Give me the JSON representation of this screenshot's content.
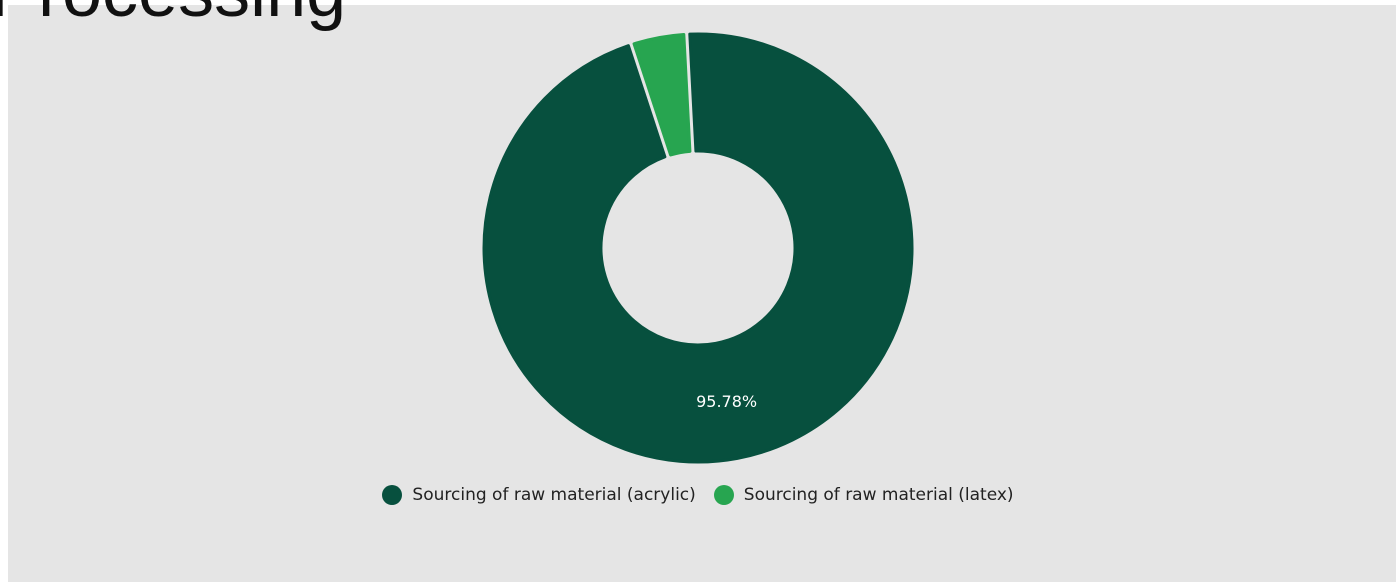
{
  "page": {
    "heading": "Processing"
  },
  "colors": {
    "background": "#e5e5e5",
    "acrylic": "#07503e",
    "latex": "#27a550",
    "data_label": "#ffffff"
  },
  "chart_data": {
    "type": "pie",
    "variant": "donut",
    "title": "",
    "series": [
      {
        "name": "Sourcing of raw material (acrylic)",
        "value": 95.78,
        "label": "95.78%",
        "color": "#07503e"
      },
      {
        "name": "Sourcing of raw material (latex)",
        "value": 4.22,
        "label": "",
        "color": "#27a550"
      }
    ],
    "legend_position": "bottom",
    "units": "%"
  }
}
